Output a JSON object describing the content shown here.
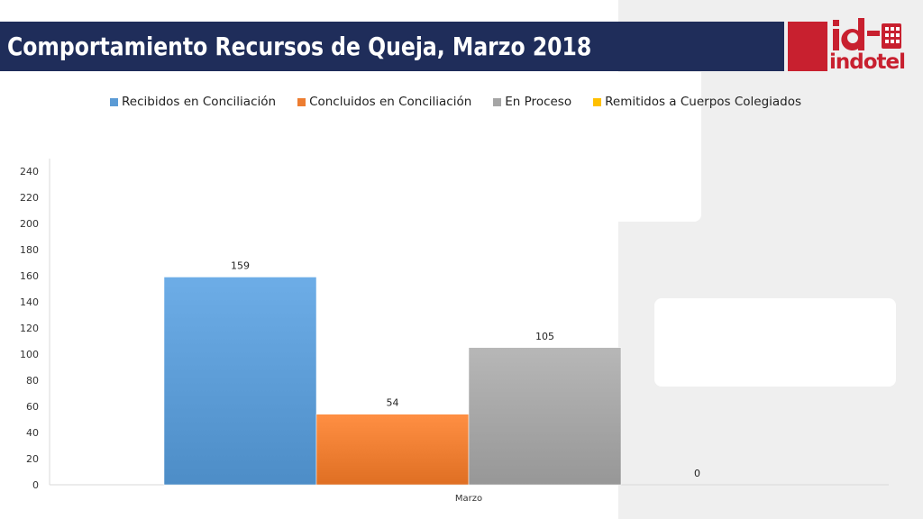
{
  "header": {
    "title": "Comportamiento Recursos de Queja, Marzo 2018"
  },
  "logo": {
    "text": "indotel",
    "glyph": "id"
  },
  "colors": {
    "title_bar": "#1f2d5a",
    "brand_red": "#c8202f",
    "side_panel": "#efefef"
  },
  "chart_data": {
    "type": "bar",
    "title": "",
    "categories": [
      "Marzo"
    ],
    "series": [
      {
        "name": "Recibidos en Conciliación",
        "values": [
          159
        ],
        "color": "#5b9bd5"
      },
      {
        "name": "Concluidos en Conciliación",
        "values": [
          54
        ],
        "color": "#ed7d31"
      },
      {
        "name": "En Proceso",
        "values": [
          105
        ],
        "color": "#a5a5a5"
      },
      {
        "name": "Remitidos a Cuerpos Colegiados",
        "values": [
          0
        ],
        "color": "#ffc000"
      }
    ],
    "data_labels": [
      "159",
      "54",
      "105",
      "0"
    ],
    "ylim": [
      0,
      240
    ],
    "yticks": [
      "0",
      "20",
      "40",
      "60",
      "80",
      "100",
      "120",
      "140",
      "160",
      "180",
      "200",
      "220",
      "240"
    ],
    "xlabel": "",
    "ylabel": "",
    "grid": false,
    "legend_position": "top"
  }
}
